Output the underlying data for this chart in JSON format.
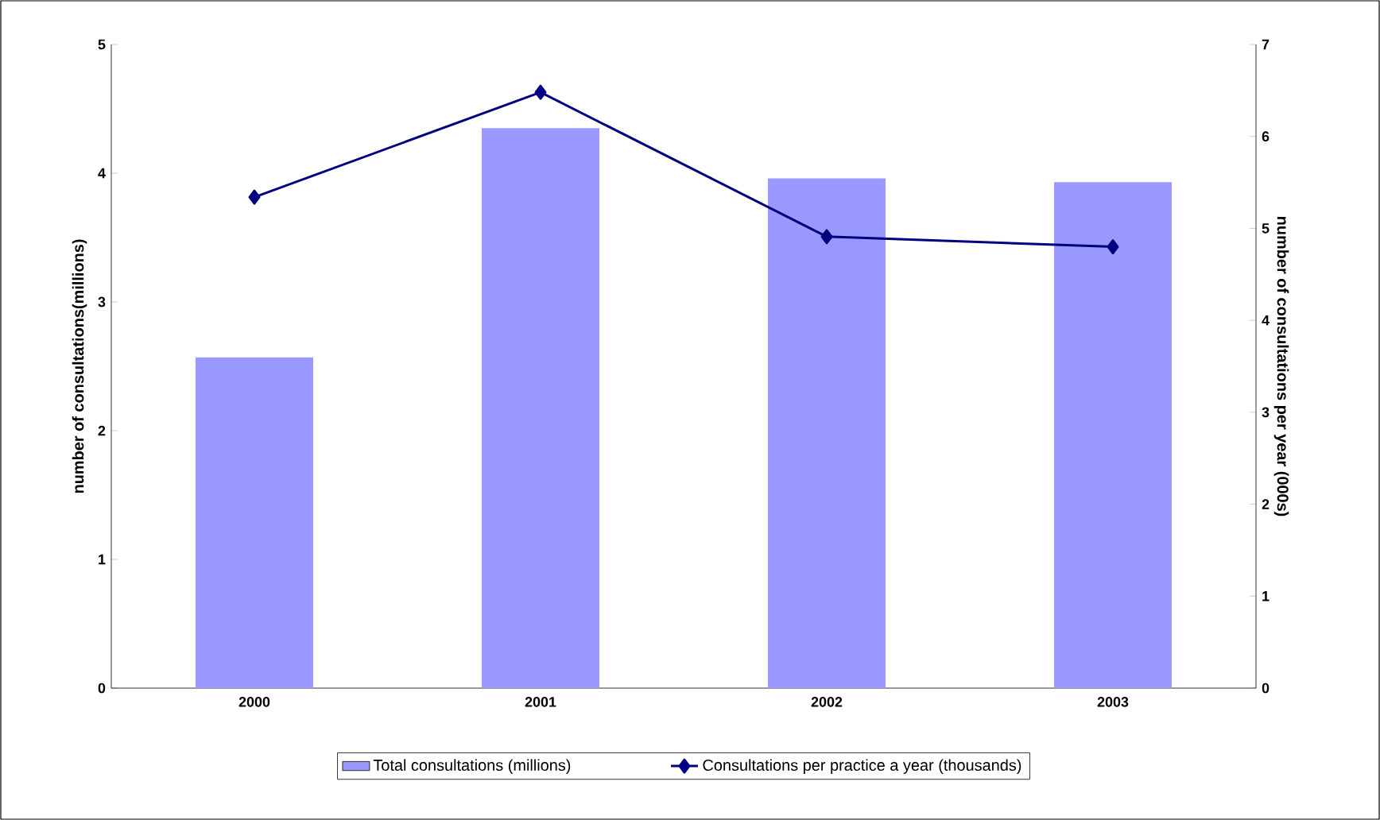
{
  "chart_data": {
    "type": "bar",
    "categories": [
      "2000",
      "2001",
      "2002",
      "2003"
    ],
    "ylabel": "number of consultations(millions)",
    "y2label": "number of consultations per year (000s)",
    "series": [
      {
        "name": "Total consultations (millions)",
        "color": "#9999ff",
        "values": [
          2.57,
          4.35,
          3.96,
          3.93
        ]
      },
      {
        "name": "Consultations per practice a year (thousands)",
        "type": "line",
        "axis": "y2",
        "color": "#000080",
        "marker": "diamond",
        "line_style": "solid",
        "values": [
          5.34,
          6.48,
          4.91,
          4.8
        ]
      }
    ],
    "ylim": [
      0,
      5
    ],
    "yticks": [
      0,
      1,
      2,
      3,
      4,
      5
    ],
    "y2lim": [
      0,
      7
    ],
    "y2ticks": [
      0,
      1,
      2,
      3,
      4,
      5,
      6,
      7
    ],
    "grid": false,
    "legend": "bottom"
  }
}
